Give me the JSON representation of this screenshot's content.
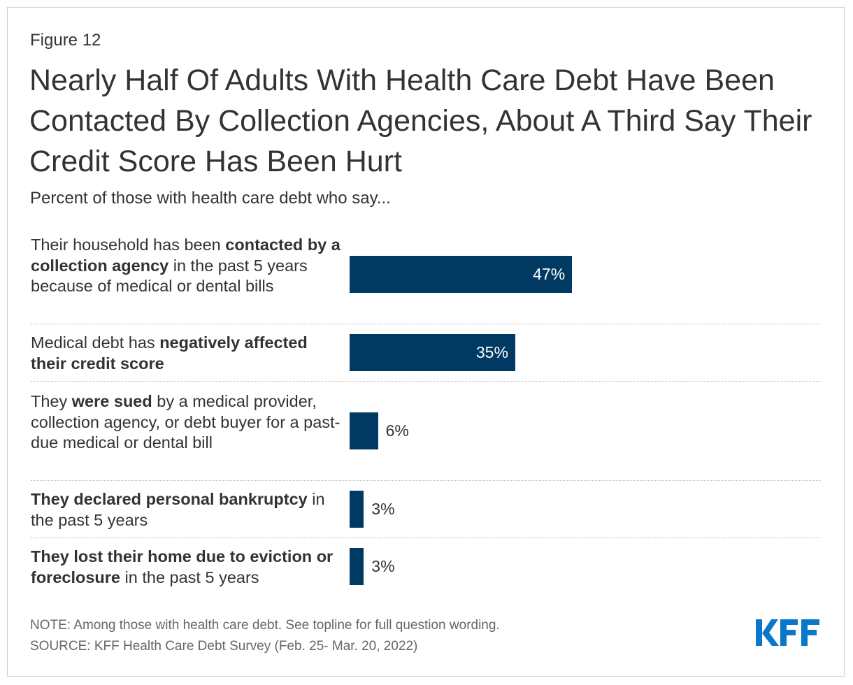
{
  "figure_label": "Figure 12",
  "title": "Nearly Half Of Adults With Health Care Debt Have Been Contacted By Collection Agencies, About A Third Say Their Credit Score Has Been Hurt",
  "subtitle": "Percent of those with health care debt who say...",
  "chart_data": {
    "type": "bar",
    "orientation": "horizontal",
    "xlim": [
      0,
      100
    ],
    "bar_color": "#003a63",
    "categories": [
      "Their household has been contacted by a collection agency in the past 5 years because of medical or dental bills",
      "Medical debt has negatively affected their credit score",
      "They were sued by a medical provider, collection agency, or debt buyer for a past-due medical or dental bill",
      "They declared personal bankruptcy in the past 5 years",
      "They lost their home due to eviction or foreclosure in the past 5 years"
    ],
    "category_segments": [
      [
        {
          "text": "Their household has been ",
          "bold": false
        },
        {
          "text": "contacted by a collection agency",
          "bold": true
        },
        {
          "text": " in the past 5 years because of medical or dental bills",
          "bold": false
        }
      ],
      [
        {
          "text": "Medical debt has ",
          "bold": false
        },
        {
          "text": "negatively affected their credit score",
          "bold": true
        }
      ],
      [
        {
          "text": "They ",
          "bold": false
        },
        {
          "text": "were sued",
          "bold": true
        },
        {
          "text": " by a medical provider, collection agency, or debt buyer for a past-due medical or dental bill",
          "bold": false
        }
      ],
      [
        {
          "text": "They declared personal bankruptcy",
          "bold": true
        },
        {
          "text": " in the past 5 years",
          "bold": false
        }
      ],
      [
        {
          "text": "They lost their home due to eviction or foreclosure",
          "bold": true
        },
        {
          "text": " in the past 5 years",
          "bold": false
        }
      ]
    ],
    "values": [
      47,
      35,
      6,
      3,
      3
    ],
    "data_labels": [
      "47%",
      "35%",
      "6%",
      "3%",
      "3%"
    ]
  },
  "note": "NOTE: Among those with health care debt. See topline for full question wording.",
  "source": "SOURCE: KFF Health Care Debt Survey (Feb. 25- Mar. 20, 2022)",
  "logo": {
    "text": "KFF",
    "color": "#0b77c8"
  }
}
